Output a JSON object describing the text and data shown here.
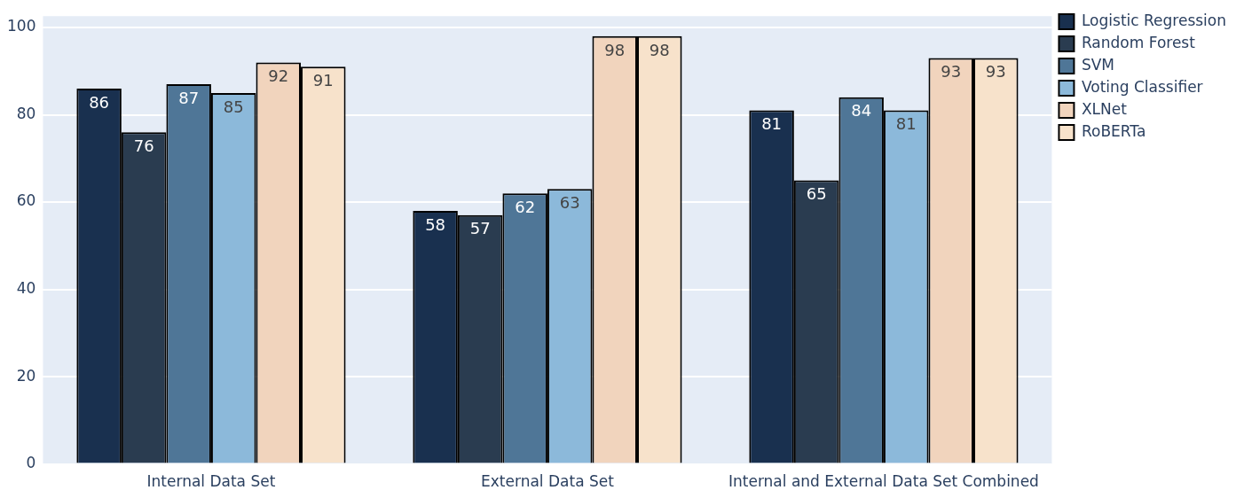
{
  "chart_data": {
    "type": "bar",
    "categories": [
      "Internal Data Set",
      "External Data Set",
      "Internal and External Data Set Combined"
    ],
    "series": [
      {
        "name": "Logistic Regression",
        "color": "#19304f",
        "values": [
          86,
          58,
          81
        ]
      },
      {
        "name": "Random Forest",
        "color": "#2a3c50",
        "values": [
          76,
          57,
          65
        ]
      },
      {
        "name": "SVM",
        "color": "#4f7697",
        "values": [
          87,
          62,
          84
        ]
      },
      {
        "name": "Voting Classifier",
        "color": "#8cb9da",
        "values": [
          85,
          63,
          81
        ]
      },
      {
        "name": "XLNet",
        "color": "#f1d4bd",
        "values": [
          92,
          98,
          93
        ]
      },
      {
        "name": "RoBERTa",
        "color": "#f7e2cb",
        "values": [
          91,
          98,
          93
        ]
      }
    ],
    "ylim": [
      0,
      102.6
    ],
    "yticks": [
      0,
      20,
      40,
      60,
      80,
      100
    ],
    "grid": "y",
    "legend": "top right",
    "data_labels": true
  }
}
